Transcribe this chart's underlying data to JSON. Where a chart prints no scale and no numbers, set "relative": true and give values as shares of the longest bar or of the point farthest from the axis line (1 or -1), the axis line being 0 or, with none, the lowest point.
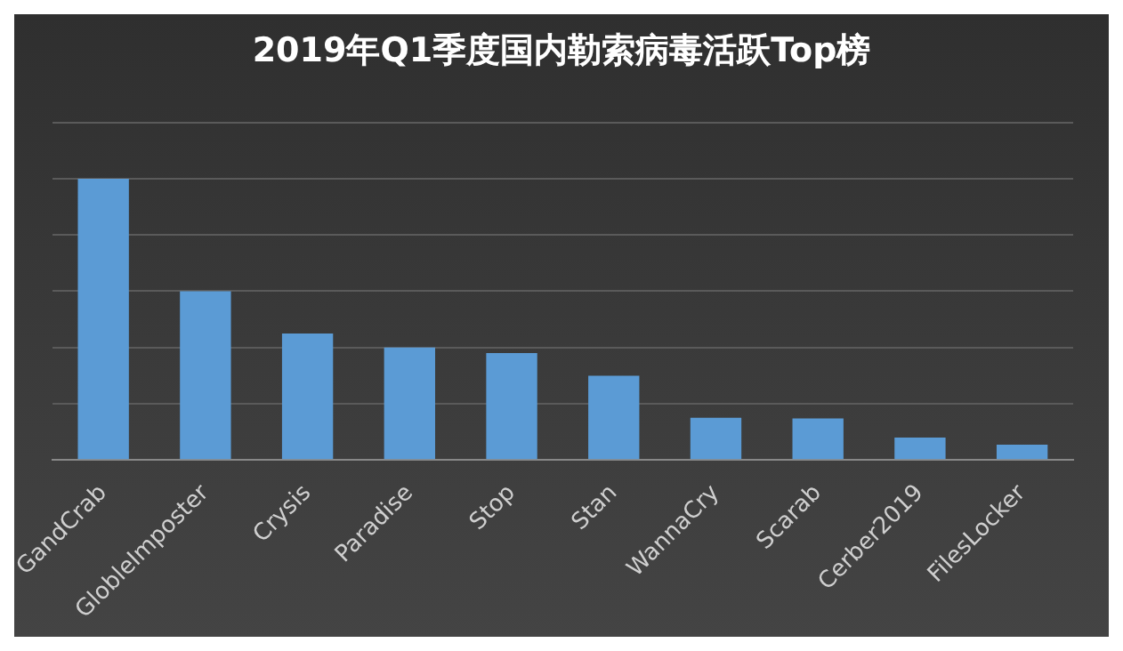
{
  "chart_data": {
    "type": "bar",
    "title": "2019年Q1季度国内勒索病毒活跃Top榜",
    "categories": [
      "GandCrab",
      "GlobleImposter",
      "Crysis",
      "Paradise",
      "Stop",
      "Stan",
      "WannaCry",
      "Scarab",
      "Cerber2019",
      "FilesLocker"
    ],
    "values": [
      1,
      0.6,
      0.45,
      0.4,
      0.38,
      0.3,
      0.15,
      0.148,
      0.08,
      0.055
    ],
    "color": "#5b9bd5",
    "relative": true,
    "grid": "y",
    "legend": false
  }
}
